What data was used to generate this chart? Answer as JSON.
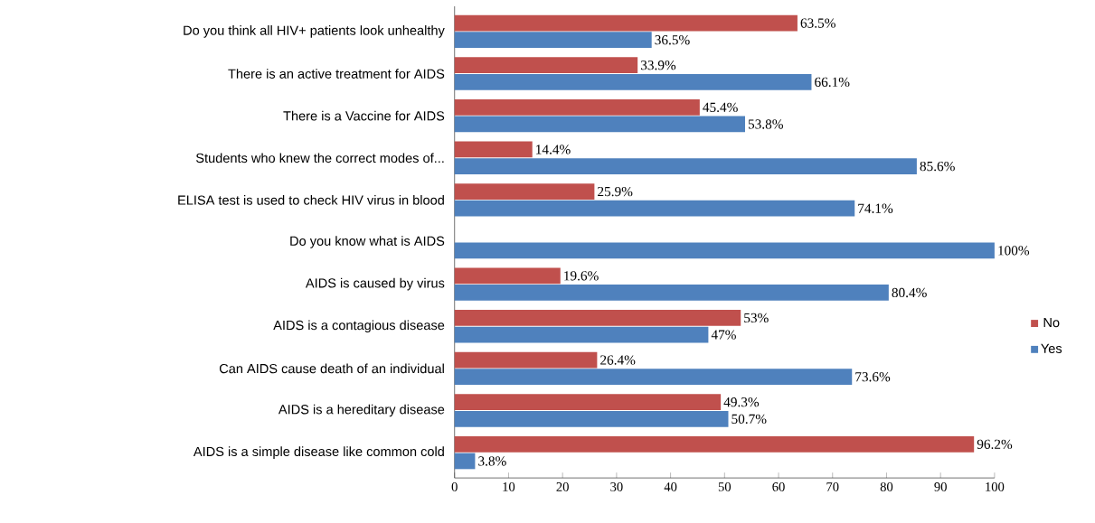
{
  "chart_data": {
    "type": "bar",
    "orientation": "horizontal",
    "categories": [
      "Do you think all HIV+ patients look unhealthy",
      "There is an active treatment for AIDS",
      "There is a Vaccine for AIDS",
      "Students who knew the correct modes of...",
      "ELISA test is used to check HIV virus in blood",
      "Do you know what is AIDS",
      "AIDS is caused by virus",
      "AIDS is a contagious disease",
      "Can AIDS cause death of an individual",
      "AIDS is a hereditary disease",
      "AIDS is a simple disease like common cold"
    ],
    "series": [
      {
        "name": "No",
        "color": "#c0504d",
        "values": [
          63.5,
          33.9,
          45.4,
          14.4,
          25.9,
          null,
          19.6,
          53,
          26.4,
          49.3,
          96.2
        ],
        "value_labels": [
          "63.5%",
          "33.9%",
          "45.4%",
          "14.4%",
          "25.9%",
          null,
          "19.6%",
          "53%",
          "26.4%",
          "49.3%",
          "96.2%"
        ]
      },
      {
        "name": "Yes",
        "color": "#4f81bd",
        "values": [
          36.5,
          66.1,
          53.8,
          85.6,
          74.1,
          100,
          80.4,
          47,
          73.6,
          50.7,
          3.8
        ],
        "value_labels": [
          "36.5%",
          "66.1%",
          "53.8%",
          "85.6%",
          "74.1%",
          "100%",
          "80.4%",
          "47%",
          "73.6%",
          "50.7%",
          "3.8%"
        ]
      }
    ],
    "xlim": [
      0,
      100
    ],
    "xticks": [
      0,
      10,
      20,
      30,
      40,
      50,
      60,
      70,
      80,
      90,
      100
    ],
    "legend": "right"
  }
}
